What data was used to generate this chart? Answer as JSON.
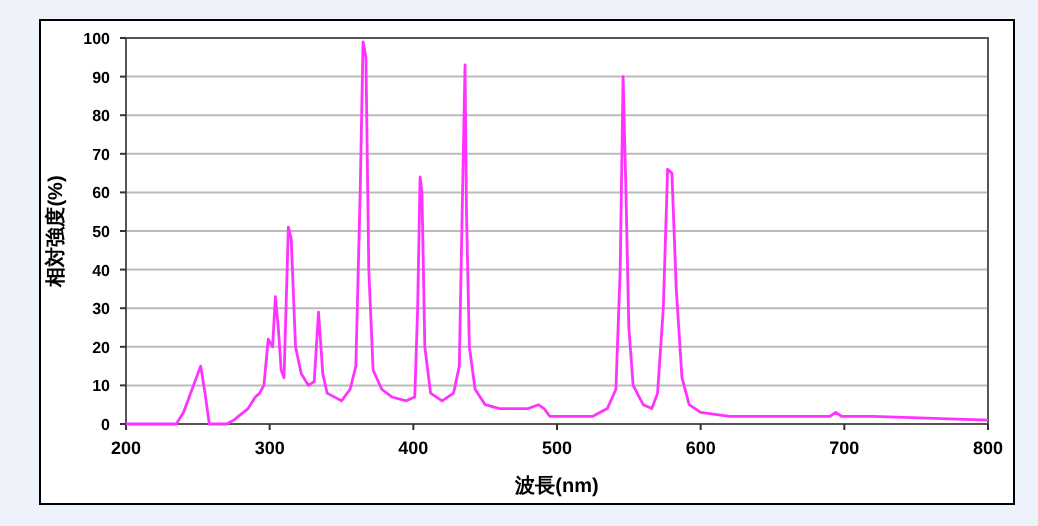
{
  "chart_data": {
    "type": "line",
    "xlabel": "波長(nm)",
    "ylabel": "相対強度(%)",
    "xlim": [
      200,
      800
    ],
    "xticks": [
      200,
      300,
      400,
      500,
      600,
      700,
      800
    ],
    "ylim": [
      0,
      100
    ],
    "yticks": [
      0,
      10,
      20,
      30,
      40,
      50,
      60,
      70,
      80,
      90,
      100
    ],
    "grid": "y",
    "marker": "none",
    "line_style": "solid",
    "series": [
      {
        "color": "#ff33ff",
        "x": [
          200,
          235,
          240,
          245,
          252,
          255,
          258,
          270,
          275,
          285,
          290,
          293,
          296,
          299,
          302,
          304,
          306,
          308,
          310,
          313,
          315,
          318,
          322,
          327,
          331,
          334,
          337,
          340,
          350,
          356,
          360,
          363,
          365,
          367,
          369,
          372,
          378,
          385,
          395,
          401,
          403,
          404.7,
          406,
          408,
          412,
          420,
          428,
          432,
          434,
          436,
          437,
          439,
          443,
          450,
          460,
          470,
          480,
          487,
          491,
          495,
          510,
          525,
          535,
          541,
          544,
          546,
          548,
          550,
          553,
          560,
          566,
          570,
          574,
          577,
          580,
          583,
          587,
          592,
          600,
          620,
          650,
          680,
          690,
          694,
          698,
          720,
          800
        ],
        "values": [
          0,
          0,
          3,
          8,
          15,
          8,
          0,
          0,
          1,
          4,
          7,
          8,
          10,
          22,
          20,
          33,
          25,
          14,
          12,
          51,
          48,
          20,
          13,
          10,
          11,
          29,
          13,
          8,
          6,
          9,
          15,
          60,
          99,
          95,
          40,
          14,
          9,
          7,
          6,
          7,
          30,
          64,
          60,
          20,
          8,
          6,
          8,
          15,
          55,
          93,
          55,
          20,
          9,
          5,
          4,
          4,
          4,
          5,
          4,
          2,
          2,
          2,
          4,
          9,
          40,
          90,
          60,
          25,
          10,
          5,
          4,
          8,
          30,
          66,
          65,
          35,
          12,
          5,
          3,
          2,
          2,
          2,
          2,
          3,
          2,
          2,
          1
        ]
      }
    ]
  }
}
